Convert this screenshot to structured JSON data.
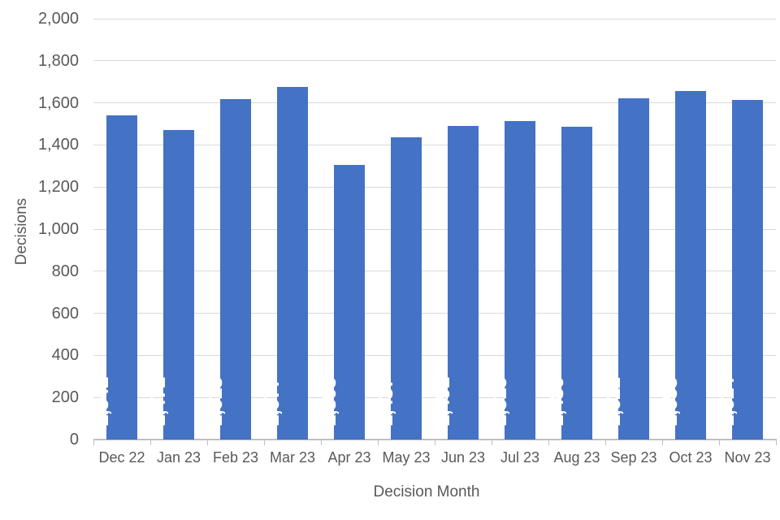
{
  "chart_data": {
    "type": "bar",
    "title": "",
    "xlabel": "Decision Month",
    "ylabel": "Decisions",
    "categories": [
      "Dec 22",
      "Jan 23",
      "Feb 23",
      "Mar 23",
      "Apr 23",
      "May 23",
      "Jun 23",
      "Jul 23",
      "Aug 23",
      "Sep 23",
      "Oct 23",
      "Nov 23"
    ],
    "values": [
      1541,
      1471,
      1618,
      1677,
      1305,
      1437,
      1491,
      1515,
      1486,
      1622,
      1655,
      1614
    ],
    "data_labels": [
      "1,541",
      "1,471",
      "1,618",
      "1,677",
      "1,305",
      "1,437",
      "1,491",
      "1,515",
      "1,486",
      "1,622",
      "1,655",
      "1,614"
    ],
    "ylim": [
      0,
      2000
    ],
    "ytick_step": 200,
    "ytick_labels": [
      "0",
      "200",
      "400",
      "600",
      "800",
      "1,000",
      "1,200",
      "1,400",
      "1,600",
      "1,800",
      "2,000"
    ],
    "grid": true,
    "legend": "none",
    "bar_color": "#4472c4",
    "value_label_color": "#ffffff",
    "axis_text_color": "#595959",
    "gridline_color": "#d9d9d9",
    "axis_line_color": "#bfbfbf"
  }
}
